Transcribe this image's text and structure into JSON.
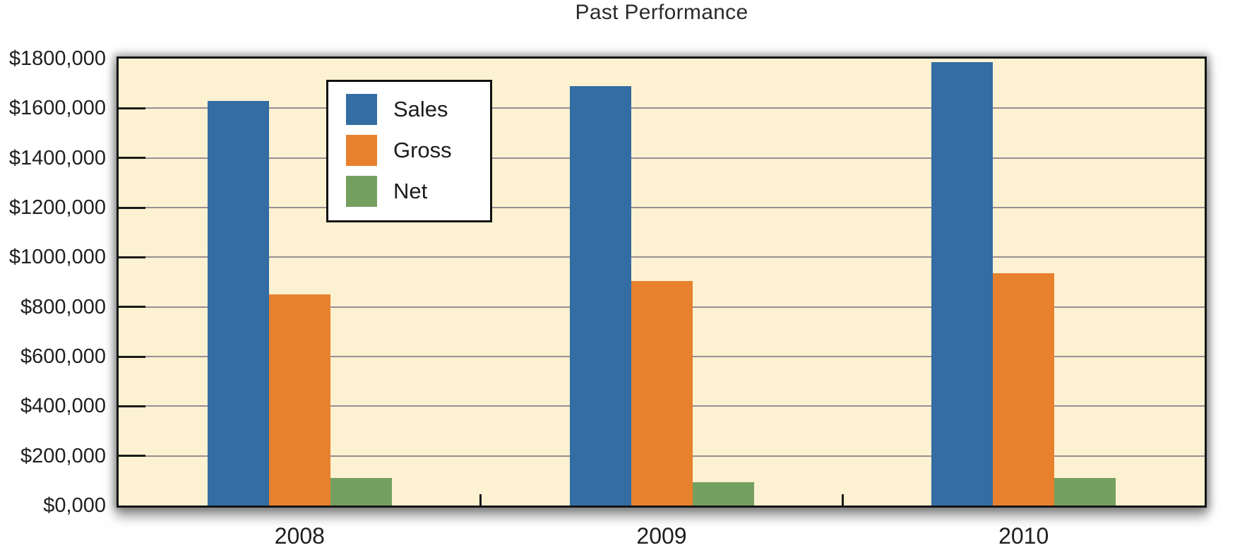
{
  "title": "Past Performance",
  "colors": {
    "plot_background": "#FCF1D0",
    "grid_line": "#978F94",
    "axis_black": "#151515",
    "sales": "#336DA4",
    "gross": "#E8812E",
    "net": "#74A05F"
  },
  "legend": {
    "items": [
      "Sales",
      "Gross",
      "Net"
    ]
  },
  "chart_data": {
    "type": "bar",
    "title": "Past Performance",
    "categories": [
      "2008",
      "2009",
      "2010"
    ],
    "series": [
      {
        "name": "Sales",
        "color": "#336DA4",
        "values": [
          1630000,
          1690000,
          1785000
        ]
      },
      {
        "name": "Gross",
        "color": "#E8812E",
        "values": [
          850000,
          905000,
          935000
        ]
      },
      {
        "name": "Net",
        "color": "#74A05F",
        "values": [
          110000,
          95000,
          110000
        ]
      }
    ],
    "ylim": [
      0,
      1800000
    ],
    "ytick_step": 200000,
    "ytick_labels": [
      "$0,000",
      "$200,000",
      "$400,000",
      "$600,000",
      "$800,000",
      "$1000,000",
      "$1200,000",
      "$1400,000",
      "$1600,000",
      "$1800,000"
    ],
    "grid": true,
    "legend_position": "upper-left-inside",
    "xlabel": "",
    "ylabel": ""
  }
}
